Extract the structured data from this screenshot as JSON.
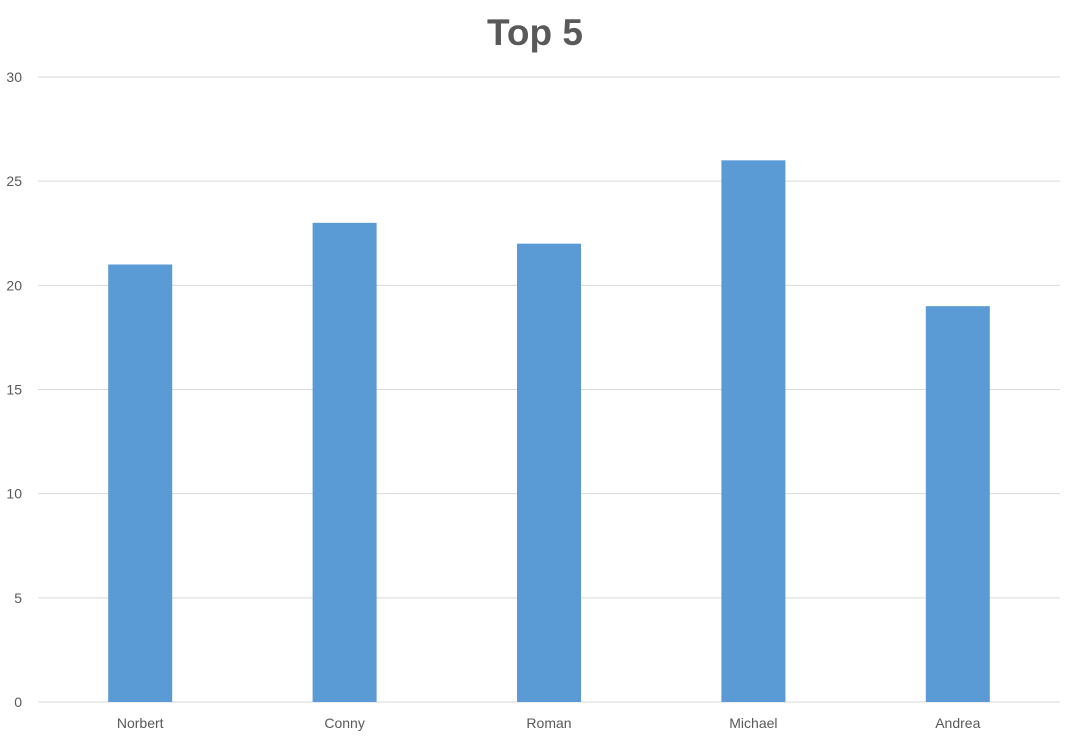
{
  "chart_data": {
    "type": "bar",
    "title": "Top 5",
    "categories": [
      "Norbert",
      "Conny",
      "Roman",
      "Michael",
      "Andrea"
    ],
    "values": [
      21,
      23,
      22,
      26,
      19
    ],
    "xlabel": "",
    "ylabel": "",
    "ylim": [
      0,
      30
    ],
    "yticks": [
      0,
      5,
      10,
      15,
      20,
      25,
      30
    ],
    "grid": true,
    "legend": "none",
    "bar_color": "#5B9BD5",
    "grid_color": "#D9D9D9",
    "text_color": "#595959"
  }
}
